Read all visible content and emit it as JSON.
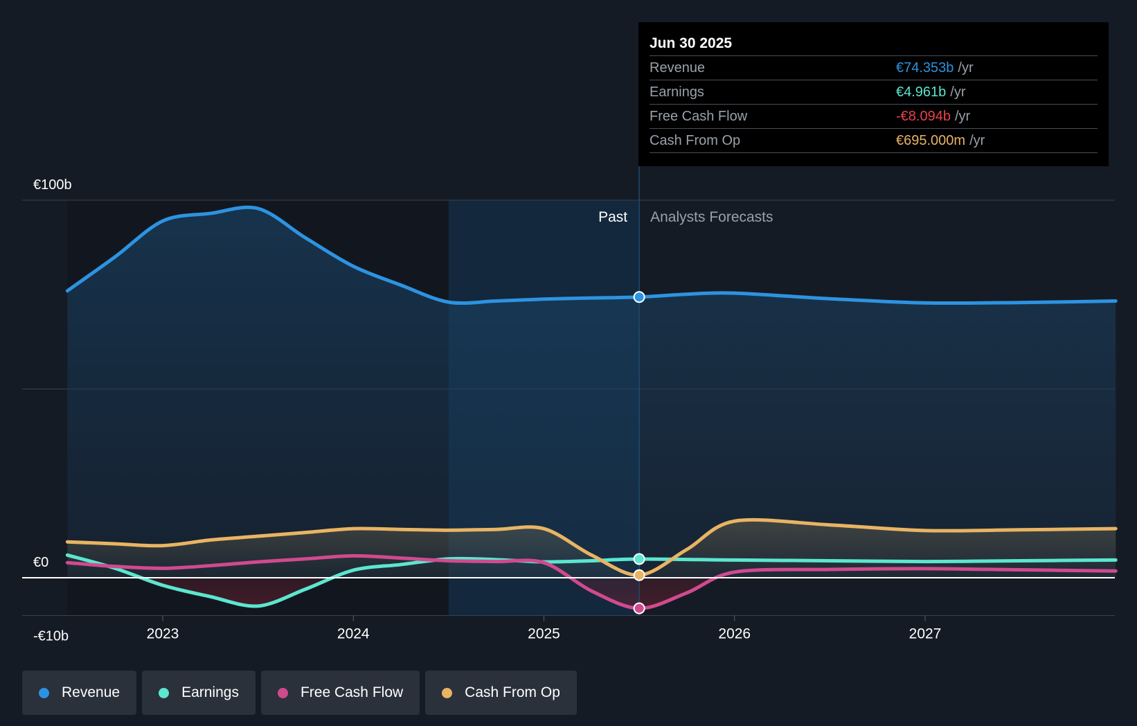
{
  "chart_data": {
    "type": "line",
    "title": "",
    "xlabel": "",
    "ylabel": "",
    "y_axis_labels": [
      "€100b",
      "€0",
      "-€10b"
    ],
    "ylim": [
      -10,
      100
    ],
    "xlim": [
      2022.5,
      2028.0
    ],
    "x_ticks": [
      {
        "value": 2023,
        "label": "2023"
      },
      {
        "value": 2024,
        "label": "2024"
      },
      {
        "value": 2025,
        "label": "2025"
      },
      {
        "value": 2026,
        "label": "2026"
      },
      {
        "value": 2027,
        "label": "2027"
      }
    ],
    "past_start": 2024.5,
    "forecast_start": 2025.5,
    "region_labels": {
      "past": "Past",
      "forecast": "Analysts Forecasts"
    },
    "series": [
      {
        "name": "Revenue",
        "color": "#2d93e1",
        "fill": true,
        "x": [
          2022.5,
          2022.75,
          2023.0,
          2023.25,
          2023.5,
          2023.75,
          2024.0,
          2024.25,
          2024.5,
          2024.75,
          2025.0,
          2025.25,
          2025.5,
          2025.75,
          2026.0,
          2026.5,
          2027.0,
          2027.5,
          2028.0
        ],
        "values": [
          76,
          85,
          94.5,
          96.5,
          97.8,
          90,
          82.5,
          77.5,
          73,
          73.3,
          73.8,
          74.1,
          74.353,
          75.1,
          75.4,
          73.9,
          72.8,
          72.9,
          73.3
        ]
      },
      {
        "name": "Earnings",
        "color": "#5ce6cf",
        "fill": false,
        "x": [
          2022.5,
          2022.75,
          2023.0,
          2023.25,
          2023.5,
          2023.75,
          2024.0,
          2024.25,
          2024.5,
          2024.75,
          2025.0,
          2025.25,
          2025.5,
          2026.0,
          2026.5,
          2027.0,
          2027.5,
          2028.0
        ],
        "values": [
          6,
          2.5,
          -2,
          -5,
          -7.5,
          -3,
          2,
          3.5,
          5,
          4.8,
          4.2,
          4.5,
          4.961,
          4.7,
          4.5,
          4.3,
          4.5,
          4.7
        ]
      },
      {
        "name": "Free Cash Flow",
        "color": "#d04a8f",
        "fill": false,
        "x": [
          2022.5,
          2022.75,
          2023.0,
          2023.25,
          2023.5,
          2023.75,
          2024.0,
          2024.25,
          2024.5,
          2024.75,
          2025.0,
          2025.25,
          2025.5,
          2025.75,
          2026.0,
          2026.5,
          2027.0,
          2027.5,
          2028.0
        ],
        "values": [
          4,
          3,
          2.5,
          3.2,
          4.2,
          5,
          5.8,
          5.2,
          4.5,
          4.3,
          4,
          -3.5,
          -8.094,
          -4,
          1.5,
          2.2,
          2.4,
          2.1,
          1.8
        ]
      },
      {
        "name": "Cash From Op",
        "color": "#e9b463",
        "fill": true,
        "x": [
          2022.5,
          2022.75,
          2023.0,
          2023.25,
          2023.5,
          2023.75,
          2024.0,
          2024.25,
          2024.5,
          2024.75,
          2025.0,
          2025.25,
          2025.5,
          2025.75,
          2026.0,
          2026.5,
          2027.0,
          2027.5,
          2028.0
        ],
        "values": [
          9.5,
          9,
          8.5,
          10,
          11,
          12,
          13,
          12.8,
          12.6,
          12.8,
          13,
          6,
          0.695,
          7.5,
          15,
          14,
          12.5,
          12.7,
          13
        ]
      }
    ]
  },
  "tooltip": {
    "date": "Jun 30 2025",
    "rows": [
      {
        "name": "Revenue",
        "value": "€74.353b",
        "unit": "/yr",
        "color": "#2d93e1"
      },
      {
        "name": "Earnings",
        "value": "€4.961b",
        "unit": "/yr",
        "color": "#5ce6cf"
      },
      {
        "name": "Free Cash Flow",
        "value": "-€8.094b",
        "unit": "/yr",
        "color": "#e8424a"
      },
      {
        "name": "Cash From Op",
        "value": "€695.000m",
        "unit": "/yr",
        "color": "#e9b463"
      }
    ]
  },
  "legend": [
    {
      "label": "Revenue",
      "color": "#2d93e1"
    },
    {
      "label": "Earnings",
      "color": "#5ce6cf"
    },
    {
      "label": "Free Cash Flow",
      "color": "#d04a8f"
    },
    {
      "label": "Cash From Op",
      "color": "#e9b463"
    }
  ]
}
